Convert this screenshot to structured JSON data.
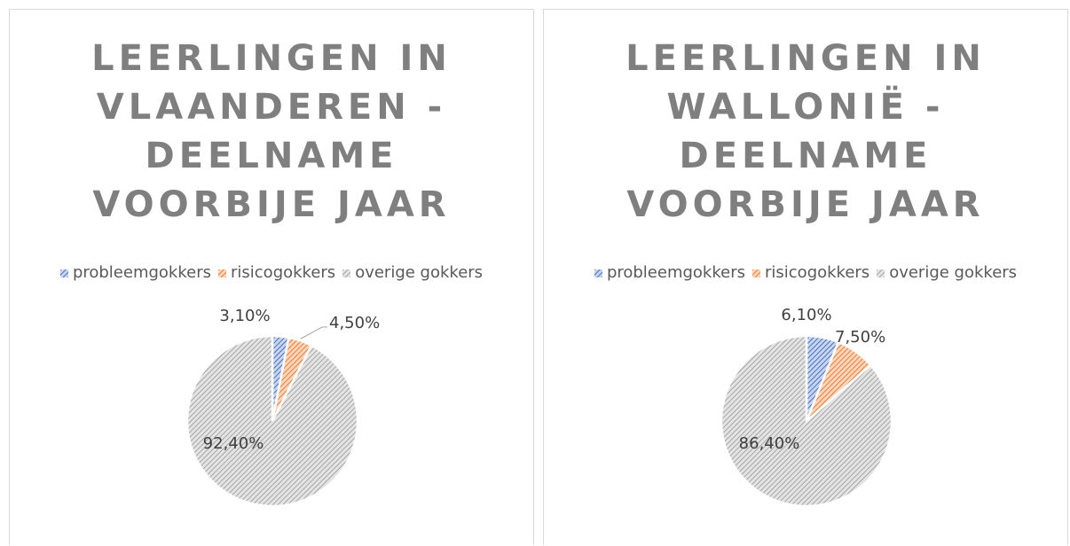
{
  "chart_data": [
    {
      "type": "pie",
      "title": "LEERLINGEN IN VLAANDEREN - DEELNAME VOORBIJE JAAR",
      "categories": [
        "probleemgokkers",
        "risicogokkers",
        "overige gokkers"
      ],
      "values": [
        3.1,
        4.5,
        92.4
      ],
      "value_labels": [
        "3,10%",
        "4,50%",
        "92,40%"
      ],
      "colors": [
        "#4472c4",
        "#ed7d31",
        "#a5a5a5"
      ],
      "legend": "top"
    },
    {
      "type": "pie",
      "title": "LEERLINGEN IN WALLONIË - DEELNAME VOORBIJE JAAR",
      "categories": [
        "probleemgokkers",
        "risicogokkers",
        "overige gokkers"
      ],
      "values": [
        6.1,
        7.5,
        86.4
      ],
      "value_labels": [
        "6,10%",
        "7,50%",
        "86,40%"
      ],
      "colors": [
        "#4472c4",
        "#ed7d31",
        "#a5a5a5"
      ],
      "legend": "top"
    }
  ]
}
